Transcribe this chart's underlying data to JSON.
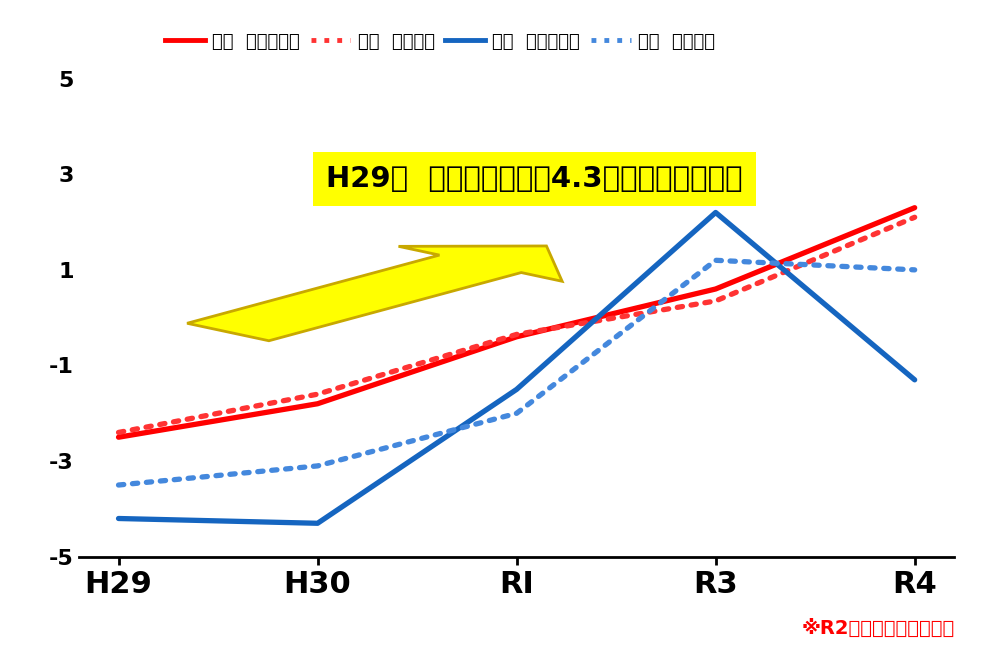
{
  "x_labels": [
    "H29",
    "H30",
    "RI",
    "R3",
    "R4"
  ],
  "x_positions": [
    0,
    1,
    2,
    3,
    4
  ],
  "kokugo_zenkoku": [
    -2.5,
    -1.8,
    -0.4,
    0.6,
    2.3
  ],
  "kokugo_ken": [
    -2.4,
    -1.6,
    -0.35,
    0.35,
    2.1
  ],
  "sugaku_zenkoku": [
    -4.2,
    -4.3,
    -1.5,
    2.2,
    -1.3
  ],
  "sugaku_ken": [
    -3.5,
    -3.1,
    -2.0,
    1.2,
    1.0
  ],
  "red_solid": "#FF0000",
  "red_dotted": "#FF3333",
  "blue_solid": "#1565C0",
  "blue_dotted": "#4488DD",
  "ylim": [
    -5,
    5
  ],
  "yticks": [
    -5,
    -3,
    -1,
    1,
    3,
    5
  ],
  "annotation_text": "H29比  県との差は平創4.3ポイントの伸び！",
  "note_text": "※r2は実施していません",
  "note_text2": "※R2は実施していません",
  "legend_items": [
    "国語  全国との差",
    "国語  県との差",
    "数学  全国との差",
    "数学  県との差"
  ],
  "background_color": "#FFFFFF",
  "annotation_bg": "#FFFF00",
  "arrow_color": "#FFFF00",
  "arrow_edge_color": "#C8A800"
}
